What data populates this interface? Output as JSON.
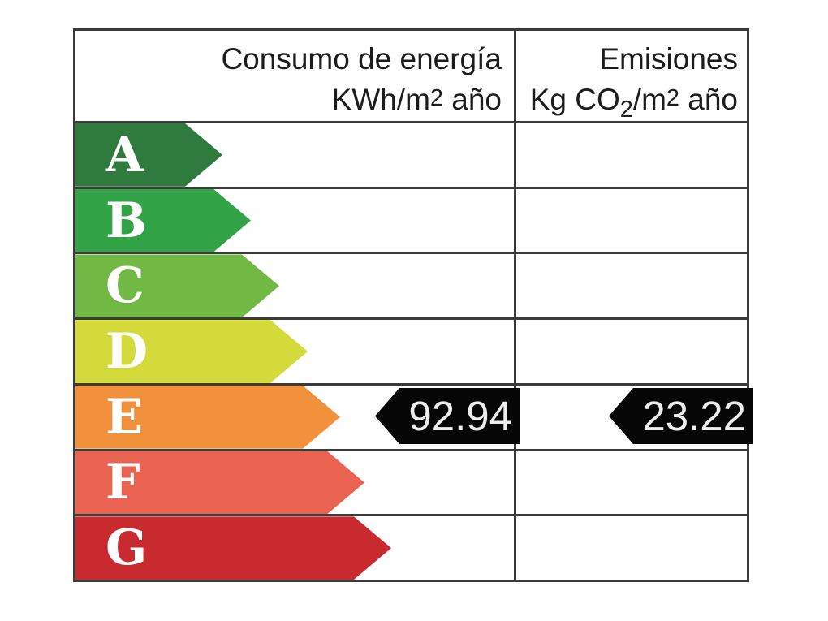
{
  "header": {
    "consumo": {
      "line1": "Consumo de energía",
      "line2_pre": "KWh/m",
      "line2_sup": "2",
      "line2_post": " año"
    },
    "emisiones": {
      "line1": "Emisiones",
      "line2_pre": "Kg CO",
      "line2_sub": "2",
      "line2_mid": "/m",
      "line2_sup": "2",
      "line2_post": " año"
    }
  },
  "ratings": [
    {
      "letter": "A",
      "color": "#2e7b3d"
    },
    {
      "letter": "B",
      "color": "#33a347"
    },
    {
      "letter": "C",
      "color": "#71b845"
    },
    {
      "letter": "D",
      "color": "#d4da3a"
    },
    {
      "letter": "E",
      "color": "#f1913c"
    },
    {
      "letter": "F",
      "color": "#ea6350"
    },
    {
      "letter": "G",
      "color": "#c92a2f"
    }
  ],
  "current": {
    "rating": "E",
    "consumo_value": "92.94",
    "emisiones_value": "23.22",
    "tag_color": "#060606",
    "tag_text_color": "#ededed"
  },
  "line_color": "#3b3b3b",
  "chart_data": {
    "type": "table",
    "columns": [
      "Consumo de energía KWh/m2 año",
      "Emisiones Kg CO2/m2 año"
    ],
    "rating_scale": [
      "A",
      "B",
      "C",
      "D",
      "E",
      "F",
      "G"
    ],
    "rating_colors": [
      "#2e7b3d",
      "#33a347",
      "#71b845",
      "#d4da3a",
      "#f1913c",
      "#ea6350",
      "#c92a2f"
    ],
    "current_rating": "E",
    "values": {
      "consumo_kwh_m2_ano": 92.94,
      "emisiones_kg_co2_m2_ano": 23.22
    }
  }
}
